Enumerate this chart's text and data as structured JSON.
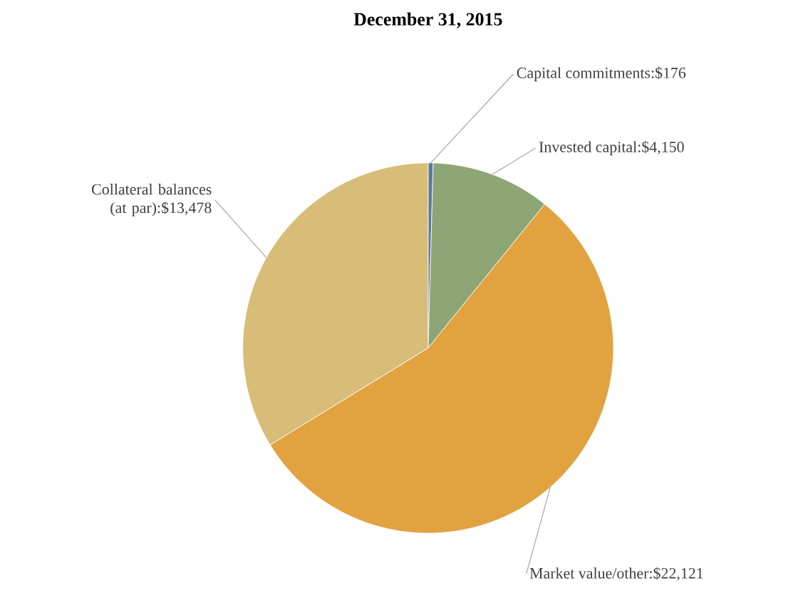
{
  "chart_data": {
    "type": "pie",
    "title": "December 31, 2015",
    "categories": [
      "Capital commitments",
      "Invested capital",
      "Market value/other",
      "Collateral balances (at par)"
    ],
    "values": [
      176,
      4150,
      22121,
      13478
    ],
    "value_labels": [
      ":$176",
      ":$4,150",
      ":$22,121",
      ":$13,478"
    ],
    "colors": [
      "#5b7b9c",
      "#8ea676",
      "#e2a23f",
      "#d8bd78"
    ]
  }
}
